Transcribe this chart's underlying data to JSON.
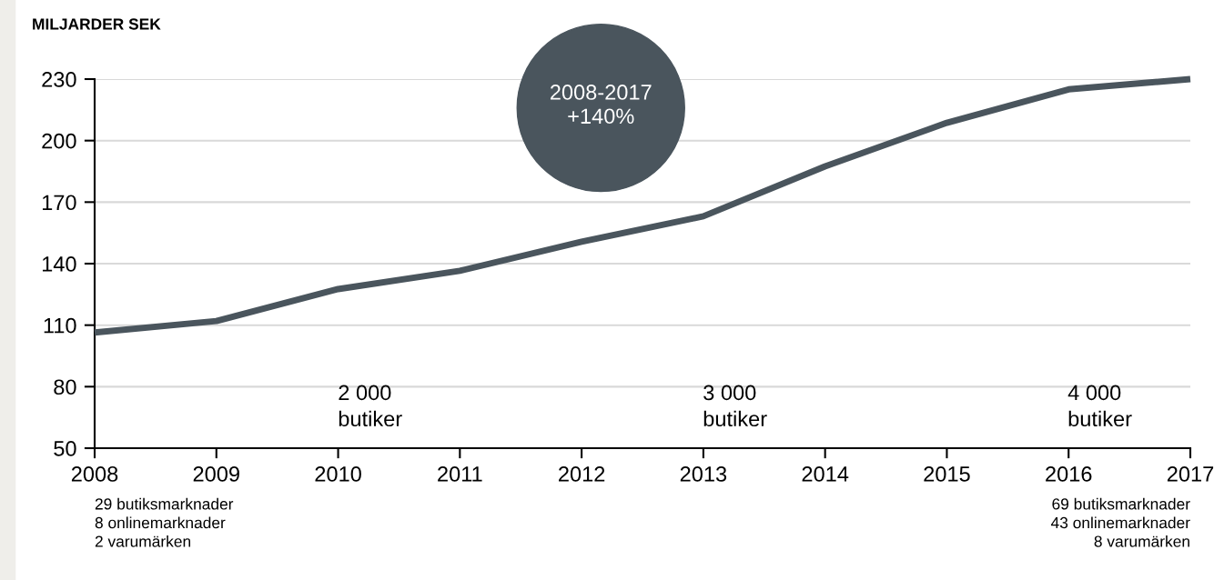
{
  "chart_data": {
    "type": "line",
    "ylabel": "MILJARDER SEK",
    "x": [
      2008,
      2009,
      2010,
      2011,
      2012,
      2013,
      2014,
      2015,
      2016,
      2017
    ],
    "series": [
      {
        "color": "#4a555d",
        "values": [
          106.4,
          112,
          127.6,
          136.5,
          150.7,
          163.1,
          187.4,
          208.7,
          225,
          230
        ]
      }
    ],
    "xlim": [
      2008,
      2017
    ],
    "xticks": [
      2008,
      2009,
      2010,
      2011,
      2012,
      2013,
      2014,
      2015,
      2016,
      2017
    ],
    "ylim": [
      50,
      230
    ],
    "yticks": [
      50,
      80,
      110,
      140,
      170,
      200,
      230
    ],
    "grid": "y",
    "marker": "none",
    "line_style": "solid",
    "annotations": [
      "2008-2017\n+140%",
      "2 000\nbutiker",
      "3 000\nbutiker",
      "4 000\nbutiker",
      "29 butiksmarknader\n8 onlinemarknader\n2 varumärken",
      "69 butiksmarknader\n43 onlinemarknader\n8 varumärken"
    ]
  }
}
